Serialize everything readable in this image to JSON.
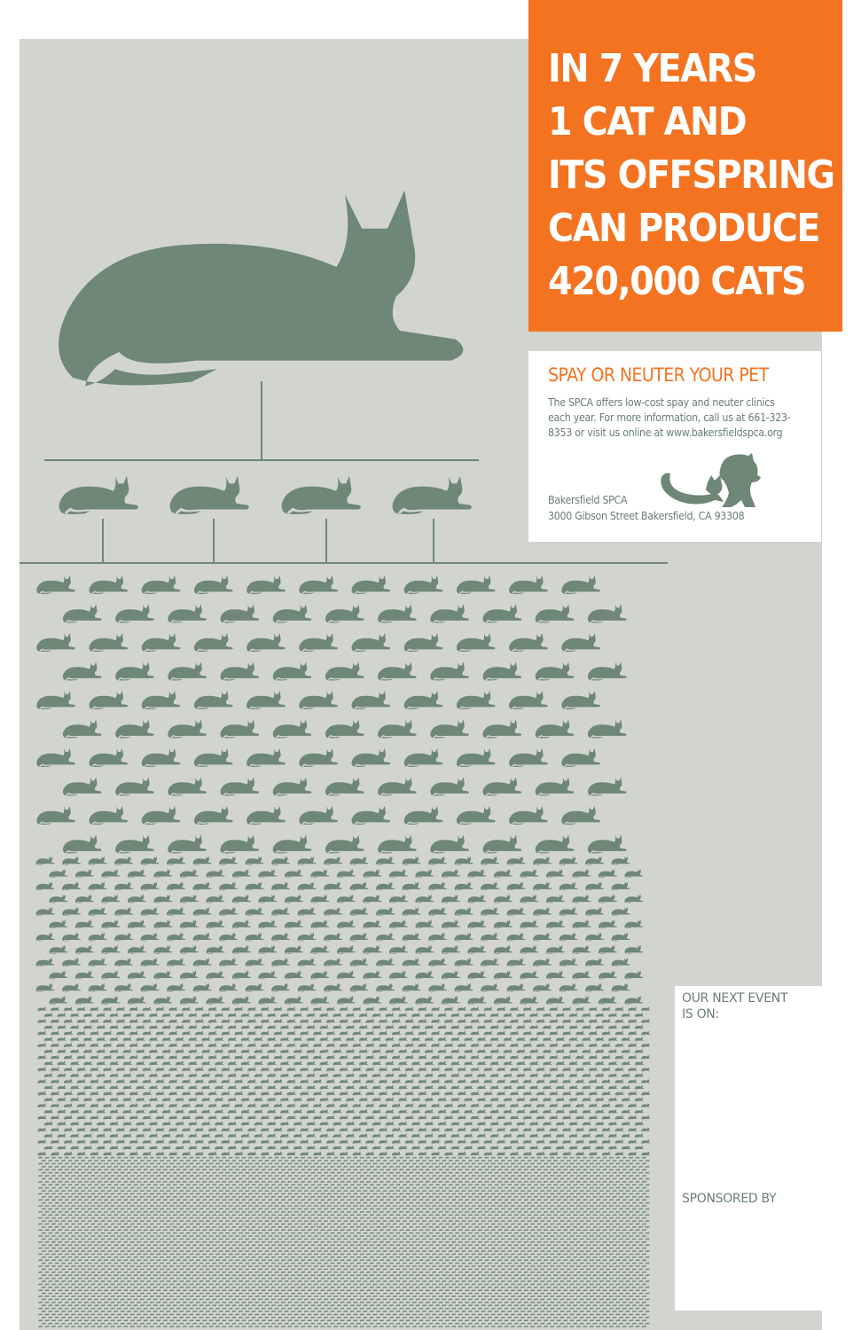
{
  "headline": {
    "lines": [
      "IN 7 YEARS",
      "1 CAT AND",
      "ITS OFFSPRING",
      "CAN PRODUCE",
      "420,000 CATS"
    ]
  },
  "info": {
    "heading": "SPAY OR NEUTER YOUR PET",
    "body": "The SPCA offers low-cost spay and neuter clinics each year. For more information, call us at 661-323-8353 or visit us online at www.bakersfieldspca.org",
    "org_name": "Bakersfield SPCA",
    "address": "3000 Gibson Street  Bakersfield, CA 93308"
  },
  "event": {
    "label": "OUR NEXT EVENT IS ON:",
    "sponsor_label": "SPONSORED BY"
  },
  "colors": {
    "accent": "#f37321",
    "cat": "#6e8777",
    "panel": "#d2d5ce",
    "text": "#6a7f72"
  },
  "icons": [
    "cat-silhouette-icon",
    "spca-logo-icon"
  ]
}
